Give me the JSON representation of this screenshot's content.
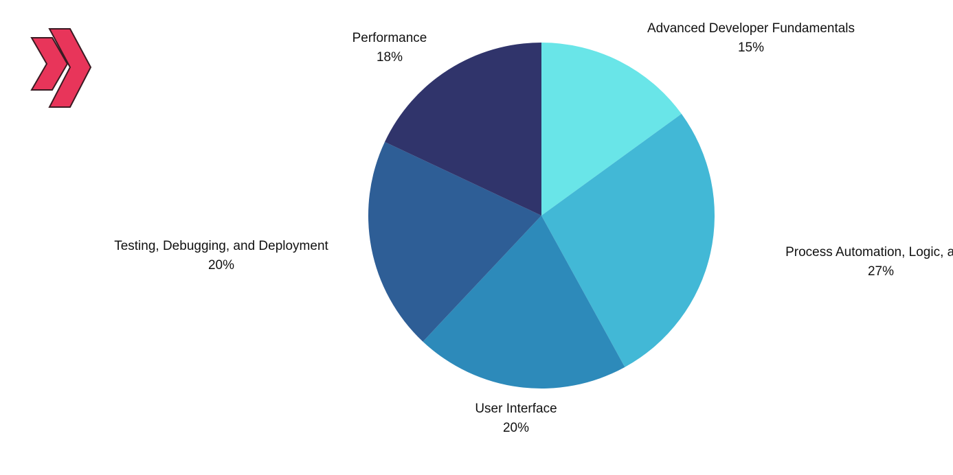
{
  "logo": {
    "icon": "double-chevron-icon",
    "color": "#e8355a"
  },
  "chart_data": {
    "type": "pie",
    "start": "12 o'clock",
    "direction": "clockwise",
    "slices": [
      {
        "label": "Advanced Developer Fundamentals",
        "value": 15,
        "value_label": "15%",
        "color": "#69e5e8"
      },
      {
        "label": "Process Automation, Logic, and I",
        "value": 27,
        "value_label": "27%",
        "color": "#42b8d6"
      },
      {
        "label": "User Interface",
        "value": 20,
        "value_label": "20%",
        "color": "#2d8aba"
      },
      {
        "label": "Testing, Debugging, and Deployment",
        "value": 20,
        "value_label": "20%",
        "color": "#2e5e96"
      },
      {
        "label": "Performance",
        "value": 18,
        "value_label": "18%",
        "color": "#30346b"
      }
    ]
  }
}
